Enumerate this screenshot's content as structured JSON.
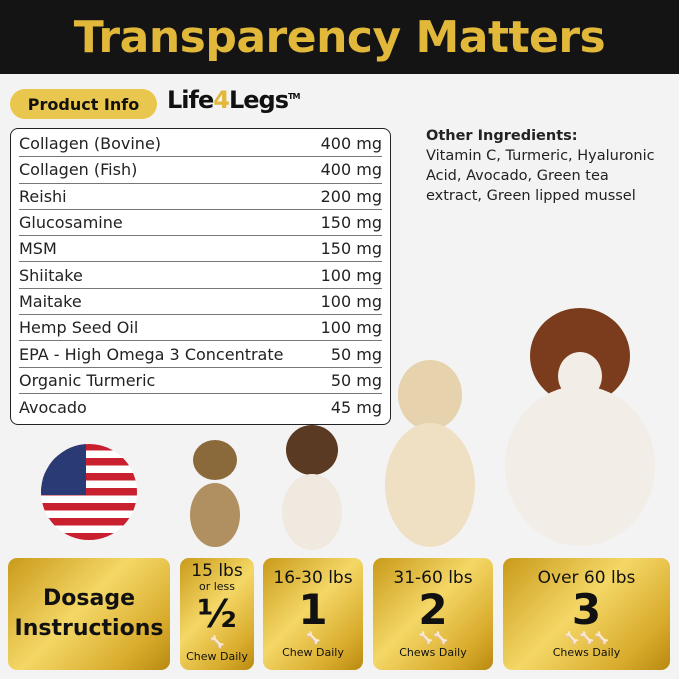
{
  "header": {
    "title": "Transparency Matters"
  },
  "badge": "Product Info",
  "logo": {
    "pre": "Life",
    "four": "4",
    "post": "Legs",
    "tm": "TM"
  },
  "ingredients": [
    {
      "name": "Collagen (Bovine)",
      "amount": "400 mg"
    },
    {
      "name": "Collagen (Fish)",
      "amount": "400 mg"
    },
    {
      "name": "Reishi",
      "amount": "200 mg"
    },
    {
      "name": "Glucosamine",
      "amount": "150 mg"
    },
    {
      "name": "MSM",
      "amount": "150 mg"
    },
    {
      "name": "Shiitake",
      "amount": "100 mg"
    },
    {
      "name": "Maitake",
      "amount": "100 mg"
    },
    {
      "name": "Hemp Seed Oil",
      "amount": "100 mg"
    },
    {
      "name": "EPA - High Omega 3 Concentrate",
      "amount": "50 mg"
    },
    {
      "name": "Organic Turmeric",
      "amount": "50 mg"
    },
    {
      "name": "Avocado",
      "amount": "45 mg"
    }
  ],
  "other": {
    "title": "Other Ingredients:",
    "text": "Vitamin C, Turmeric, Hyaluronic Acid, Avocado, Green tea extract, Green lipped mussel"
  },
  "dosage": {
    "title_line1": "Dosage",
    "title_line2": "Instructions",
    "tiers": [
      {
        "weight": "15 lbs",
        "weight_sub": "or less",
        "count": "½",
        "bones": "🦴",
        "label": "Chew Daily"
      },
      {
        "weight": "16-30 lbs",
        "count": "1",
        "bones": "🦴",
        "label": "Chew Daily"
      },
      {
        "weight": "31-60 lbs",
        "count": "2",
        "bones": "🦴🦴",
        "label": "Chews Daily"
      },
      {
        "weight": "Over 60 lbs",
        "count": "3",
        "bones": "🦴🦴🦴",
        "label": "Chews Daily"
      }
    ]
  },
  "colors": {
    "gold": "#e2b83a",
    "header_bg": "#141414"
  }
}
